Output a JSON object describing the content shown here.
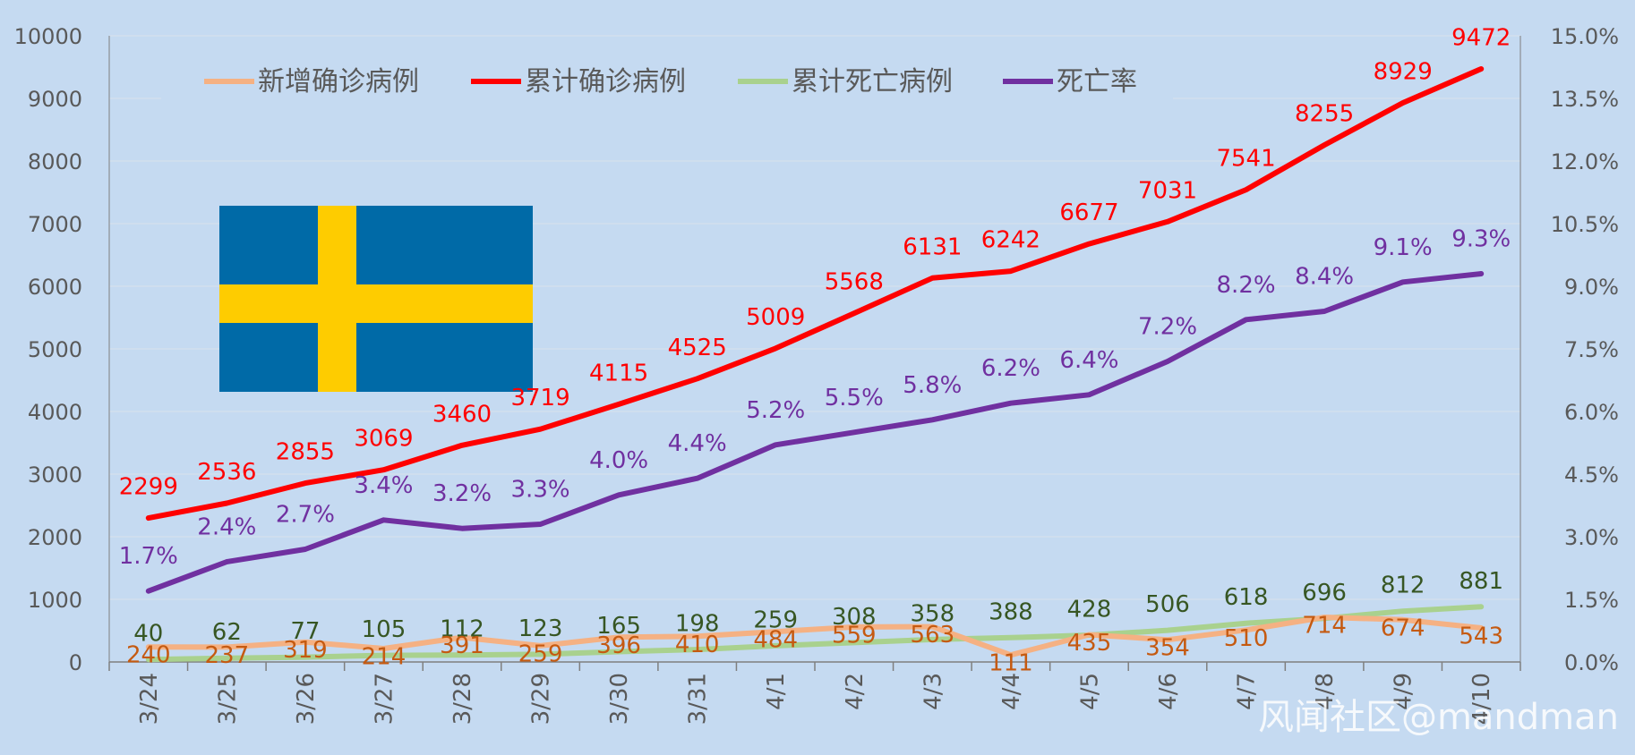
{
  "chart_data": {
    "type": "line",
    "categories": [
      "3/24",
      "3/25",
      "3/26",
      "3/27",
      "3/28",
      "3/29",
      "3/30",
      "3/31",
      "4/1",
      "4/2",
      "4/3",
      "4/4",
      "4/5",
      "4/6",
      "4/7",
      "4/8",
      "4/9",
      "4/10"
    ],
    "left_axis": {
      "min": 0,
      "max": 10000,
      "step": 1000,
      "ticks": [
        "0",
        "1000",
        "2000",
        "3000",
        "4000",
        "5000",
        "6000",
        "7000",
        "8000",
        "9000",
        "10000"
      ]
    },
    "right_axis": {
      "min": 0,
      "max": 15,
      "step": 1.5,
      "ticks": [
        "0.0%",
        "1.5%",
        "3.0%",
        "4.5%",
        "6.0%",
        "7.5%",
        "9.0%",
        "10.5%",
        "12.0%",
        "13.5%",
        "15.0%"
      ]
    },
    "grid": true,
    "legend_position": "top",
    "series": [
      {
        "name": "新增确诊病例",
        "key": "new",
        "axis": "left",
        "color": "#f5b183",
        "label_color": "#c55a11",
        "values": [
          240,
          237,
          319,
          214,
          391,
          259,
          396,
          410,
          484,
          559,
          563,
          111,
          435,
          354,
          510,
          714,
          674,
          543
        ],
        "labels": [
          "240",
          "237",
          "319",
          "214",
          "391",
          "259",
          "396",
          "410",
          "484",
          "559",
          "563",
          "111",
          "435",
          "354",
          "510",
          "714",
          "674",
          "543"
        ]
      },
      {
        "name": "累计确诊病例",
        "key": "cases",
        "axis": "left",
        "color": "#ff0000",
        "label_color": "#ff0000",
        "values": [
          2299,
          2536,
          2855,
          3069,
          3460,
          3719,
          4115,
          4525,
          5009,
          5568,
          6131,
          6242,
          6677,
          7031,
          7541,
          8255,
          8929,
          9472
        ],
        "labels": [
          "2299",
          "2536",
          "2855",
          "3069",
          "3460",
          "3719",
          "4115",
          "4525",
          "5009",
          "5568",
          "6131",
          "6242",
          "6677",
          "7031",
          "7541",
          "8255",
          "8929",
          "9472"
        ]
      },
      {
        "name": "累计死亡病例",
        "key": "deaths",
        "axis": "left",
        "color": "#a9d18e",
        "label_color": "#375623",
        "values": [
          40,
          62,
          77,
          105,
          112,
          123,
          165,
          198,
          259,
          308,
          358,
          388,
          428,
          506,
          618,
          696,
          812,
          881
        ],
        "labels": [
          "40",
          "62",
          "77",
          "105",
          "112",
          "123",
          "165",
          "198",
          "259",
          "308",
          "358",
          "388",
          "428",
          "506",
          "618",
          "696",
          "812",
          "881"
        ]
      },
      {
        "name": "死亡率",
        "key": "rate",
        "axis": "right",
        "color": "#7030a0",
        "label_color": "#7030a0",
        "values": [
          1.7,
          2.4,
          2.7,
          3.4,
          3.2,
          3.3,
          4.0,
          4.4,
          5.2,
          5.5,
          5.8,
          6.2,
          6.4,
          7.2,
          8.2,
          8.4,
          9.1,
          9.3
        ],
        "labels": [
          "1.7%",
          "2.4%",
          "2.7%",
          "3.4%",
          "3.2%",
          "3.3%",
          "4.0%",
          "4.4%",
          "5.2%",
          "5.5%",
          "5.8%",
          "6.2%",
          "6.4%",
          "7.2%",
          "8.2%",
          "8.4%",
          "9.1%",
          "9.3%"
        ]
      }
    ]
  },
  "decoration": {
    "flag": {
      "icon": "sweden-flag-icon",
      "blue": "#006aa7",
      "yellow": "#fecc00"
    },
    "watermark": "风闻社区@mandman"
  }
}
